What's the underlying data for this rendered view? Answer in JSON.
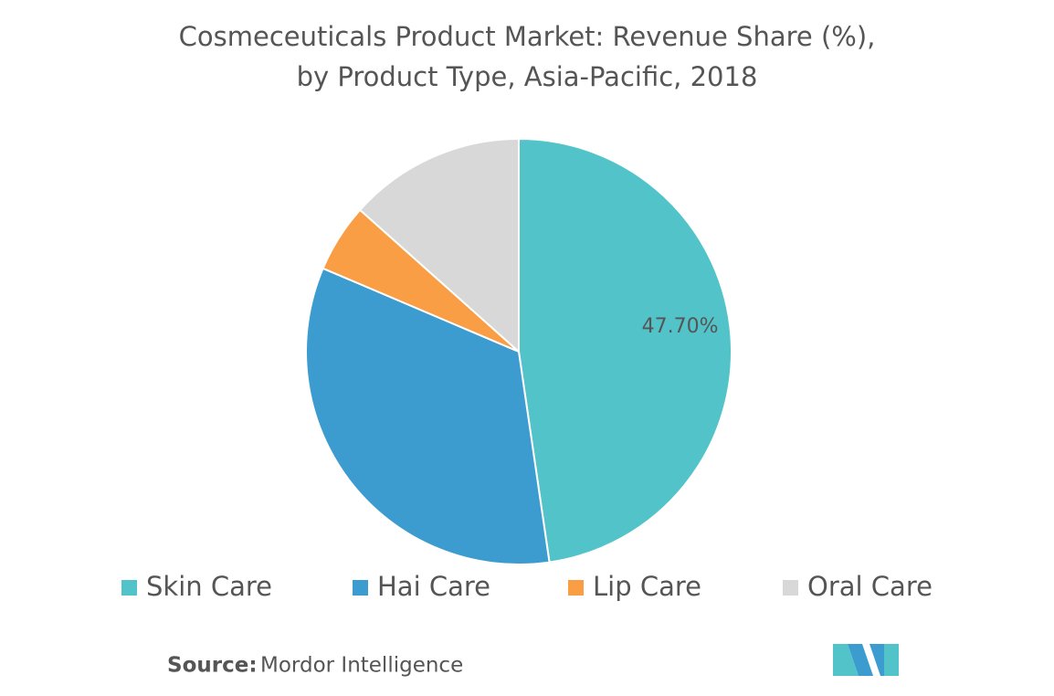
{
  "chart_data": {
    "type": "pie",
    "title": "Cosmeceuticals Product Market: Revenue Share (%),",
    "subtitle": "by Product Type, Asia-Pacific, 2018",
    "categories": [
      "Skin Care",
      "Hai Care",
      "Lip Care",
      "Oral Care"
    ],
    "values": [
      47.7,
      33.7,
      5.2,
      13.4
    ],
    "value_labels": [
      "47.70%",
      null,
      null,
      null
    ],
    "colors": [
      "#52c4c9",
      "#3d9ccf",
      "#fa9e45",
      "#d8d8d8"
    ],
    "legend": "bottom",
    "source_label": "Source:",
    "source": "Mordor Intelligence"
  }
}
